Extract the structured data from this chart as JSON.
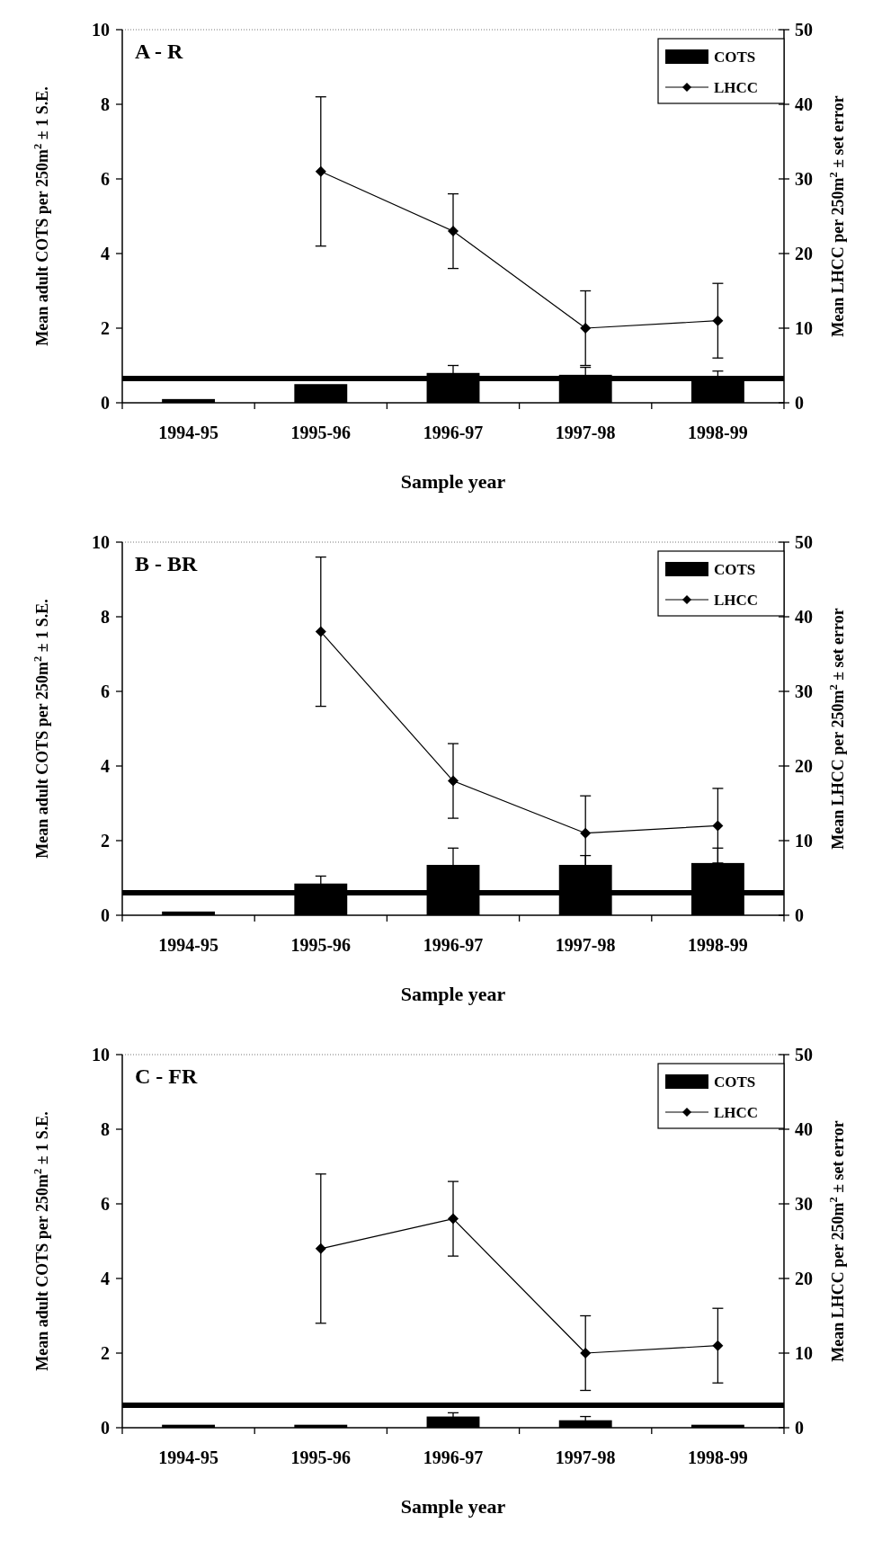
{
  "chart_data": [
    {
      "type": "bar",
      "title": "A - R",
      "xlabel": "Sample year",
      "ylabel": "Mean adult COTS per 250m$^{2}$ ± 1 S.E.",
      "y2label": "Mean LHCC per 250m$^{2}$ ± set error",
      "categories": [
        "1994-95",
        "1995-96",
        "1996-97",
        "1997-98",
        "1998-99"
      ],
      "series": [
        {
          "name": "COTS",
          "color": "#000000",
          "values": [
            0.1,
            0.5,
            0.8,
            0.75,
            0.65
          ],
          "errors": [
            null,
            null,
            0.2,
            0.2,
            0.2
          ]
        },
        {
          "name": "LHCC",
          "type": "line",
          "axis": "y2",
          "color": "#000000",
          "values": [
            null,
            31,
            23,
            10,
            11
          ],
          "errors": [
            null,
            10,
            5,
            5,
            5
          ]
        }
      ],
      "ylim": [
        0,
        10
      ],
      "yticks": [
        0,
        2,
        4,
        6,
        8,
        10
      ],
      "y2lim": [
        0,
        50
      ],
      "y2ticks": [
        0,
        10,
        20,
        30,
        40,
        50
      ],
      "ref_lines": [
        {
          "axis": "y",
          "value": 0.65,
          "color": "#000000"
        }
      ],
      "legend": "top right",
      "marker": "diamond",
      "grid": false
    },
    {
      "type": "bar",
      "title": "B - BR",
      "xlabel": "Sample year",
      "ylabel": "Mean adult COTS per 250m$^{2}$ ± 1 S.E.",
      "y2label": "Mean LHCC per 250m$^{2}$ ± set error",
      "categories": [
        "1994-95",
        "1995-96",
        "1996-97",
        "1997-98",
        "1998-99"
      ],
      "series": [
        {
          "name": "COTS",
          "color": "#000000",
          "values": [
            0.1,
            0.85,
            1.35,
            1.35,
            1.4
          ],
          "errors": [
            null,
            0.2,
            0.45,
            0.25,
            0.4
          ]
        },
        {
          "name": "LHCC",
          "type": "line",
          "axis": "y2",
          "color": "#000000",
          "values": [
            null,
            38,
            18,
            11,
            12
          ],
          "errors": [
            null,
            10,
            5,
            5,
            5
          ]
        }
      ],
      "ylim": [
        0,
        10
      ],
      "yticks": [
        0,
        2,
        4,
        6,
        8,
        10
      ],
      "y2lim": [
        0,
        50
      ],
      "y2ticks": [
        0,
        10,
        20,
        30,
        40,
        50
      ],
      "ref_lines": [
        {
          "axis": "y",
          "value": 0.6,
          "color": "#000000"
        }
      ],
      "legend": "top right",
      "marker": "diamond",
      "grid": false
    },
    {
      "type": "bar",
      "title": "C - FR",
      "xlabel": "Sample year",
      "ylabel": "Mean adult COTS per 250m$^{2}$ ± 1 S.E.",
      "y2label": "Mean LHCC per 250m$^{2}$ ± set error",
      "categories": [
        "1994-95",
        "1995-96",
        "1996-97",
        "1997-98",
        "1998-99"
      ],
      "series": [
        {
          "name": "COTS",
          "color": "#000000",
          "values": [
            0.08,
            0.08,
            0.3,
            0.2,
            0.08
          ],
          "errors": [
            null,
            null,
            0.1,
            0.1,
            null
          ]
        },
        {
          "name": "LHCC",
          "type": "line",
          "axis": "y2",
          "color": "#000000",
          "values": [
            null,
            24,
            28,
            10,
            11
          ],
          "errors": [
            null,
            10,
            5,
            5,
            5
          ]
        }
      ],
      "ylim": [
        0,
        10
      ],
      "yticks": [
        0,
        2,
        4,
        6,
        8,
        10
      ],
      "y2lim": [
        0,
        50
      ],
      "y2ticks": [
        0,
        10,
        20,
        30,
        40,
        50
      ],
      "ref_lines": [
        {
          "axis": "y",
          "value": 0.6,
          "color": "#000000"
        }
      ],
      "legend": "top right",
      "marker": "diamond",
      "grid": false
    }
  ]
}
